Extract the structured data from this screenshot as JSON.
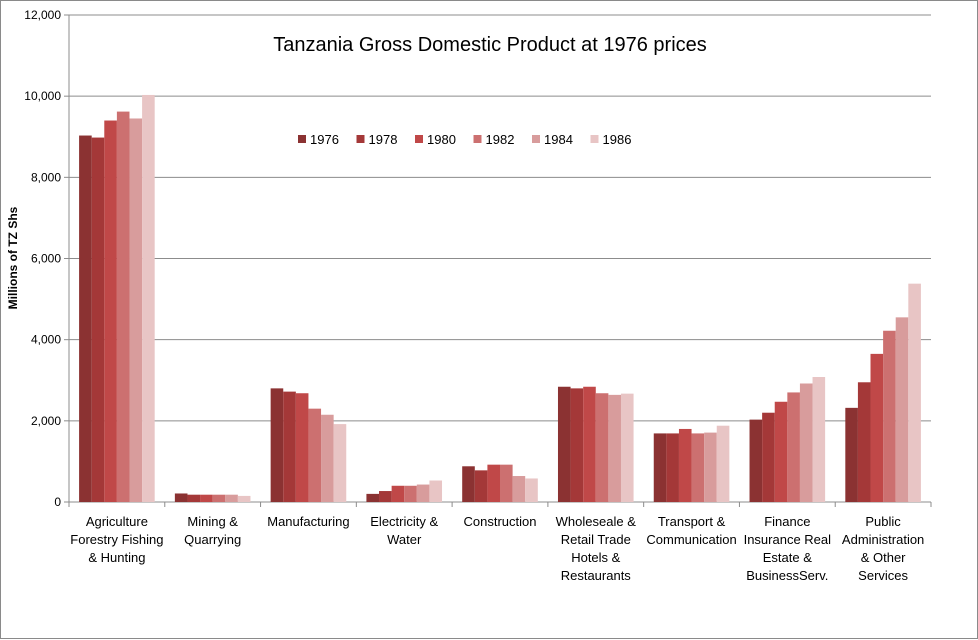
{
  "chart_data": {
    "type": "bar",
    "title": "Tanzania Gross Domestic Product at 1976 prices",
    "xlabel": "",
    "ylabel": "Millions of TZ Shs",
    "ylim": [
      0,
      12000
    ],
    "yticks": [
      0,
      2000,
      4000,
      6000,
      8000,
      10000,
      12000
    ],
    "ytick_labels": [
      "0",
      "2,000",
      "4,000",
      "6,000",
      "8,000",
      "10,000",
      "12,000"
    ],
    "grid": true,
    "legend_position": "top-center",
    "categories": [
      [
        "Agriculture",
        "Forestry Fishing",
        "& Hunting"
      ],
      [
        "Mining &",
        "Quarrying"
      ],
      [
        "Manufacturing"
      ],
      [
        "Electricity &",
        "Water"
      ],
      [
        "Construction"
      ],
      [
        "Wholeseale &",
        "Retail Trade",
        "Hotels &",
        "Restaurants"
      ],
      [
        "Transport &",
        "Communication"
      ],
      [
        "Finance",
        "Insurance Real",
        "Estate &",
        "BusinessServ."
      ],
      [
        "Public",
        "Administration",
        "& Other",
        "Services"
      ]
    ],
    "series": [
      {
        "name": "1976",
        "color": "#8b3232",
        "values": [
          9030,
          210,
          2800,
          200,
          880,
          2840,
          1690,
          2030,
          2320
        ]
      },
      {
        "name": "1978",
        "color": "#a43838",
        "values": [
          8980,
          180,
          2720,
          270,
          780,
          2800,
          1690,
          2200,
          2950
        ]
      },
      {
        "name": "1980",
        "color": "#c04848",
        "values": [
          9400,
          180,
          2680,
          400,
          920,
          2840,
          1800,
          2470,
          3650
        ]
      },
      {
        "name": "1982",
        "color": "#cc7070",
        "values": [
          9620,
          180,
          2300,
          400,
          920,
          2680,
          1690,
          2700,
          4220
        ]
      },
      {
        "name": "1984",
        "color": "#d89c9c",
        "values": [
          9450,
          180,
          2150,
          430,
          640,
          2640,
          1710,
          2920,
          4550
        ]
      },
      {
        "name": "1986",
        "color": "#e8c5c5",
        "values": [
          10030,
          150,
          1920,
          530,
          580,
          2670,
          1880,
          3080,
          5380
        ]
      }
    ]
  }
}
